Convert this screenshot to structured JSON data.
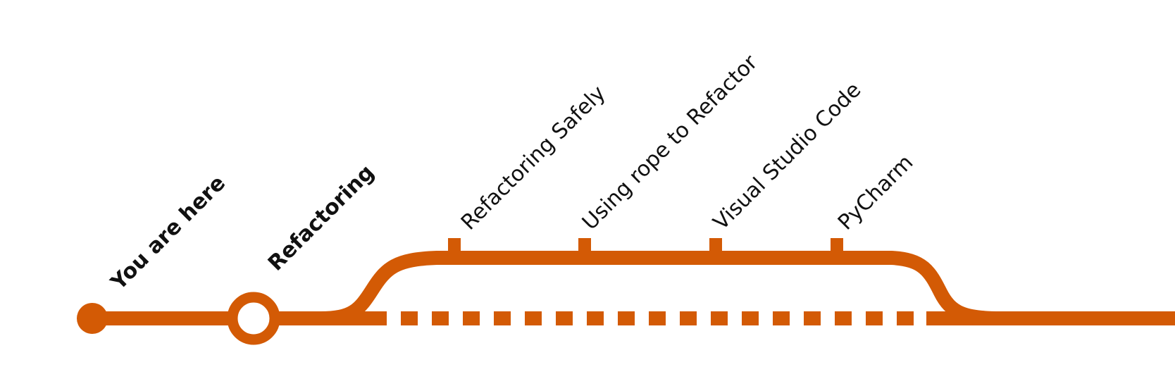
{
  "diagram": {
    "line_color": "#D35A05",
    "background_color": "#FFFFFF",
    "text_color": "#111111",
    "start_marker": {
      "label": "You are here"
    },
    "main_station": {
      "label": "Refactoring"
    },
    "branch_stations": [
      {
        "label": "Refactoring Safely"
      },
      {
        "label": "Using rope to Refactor"
      },
      {
        "label": "Visual Studio Code"
      },
      {
        "label": "PyCharm"
      }
    ]
  }
}
